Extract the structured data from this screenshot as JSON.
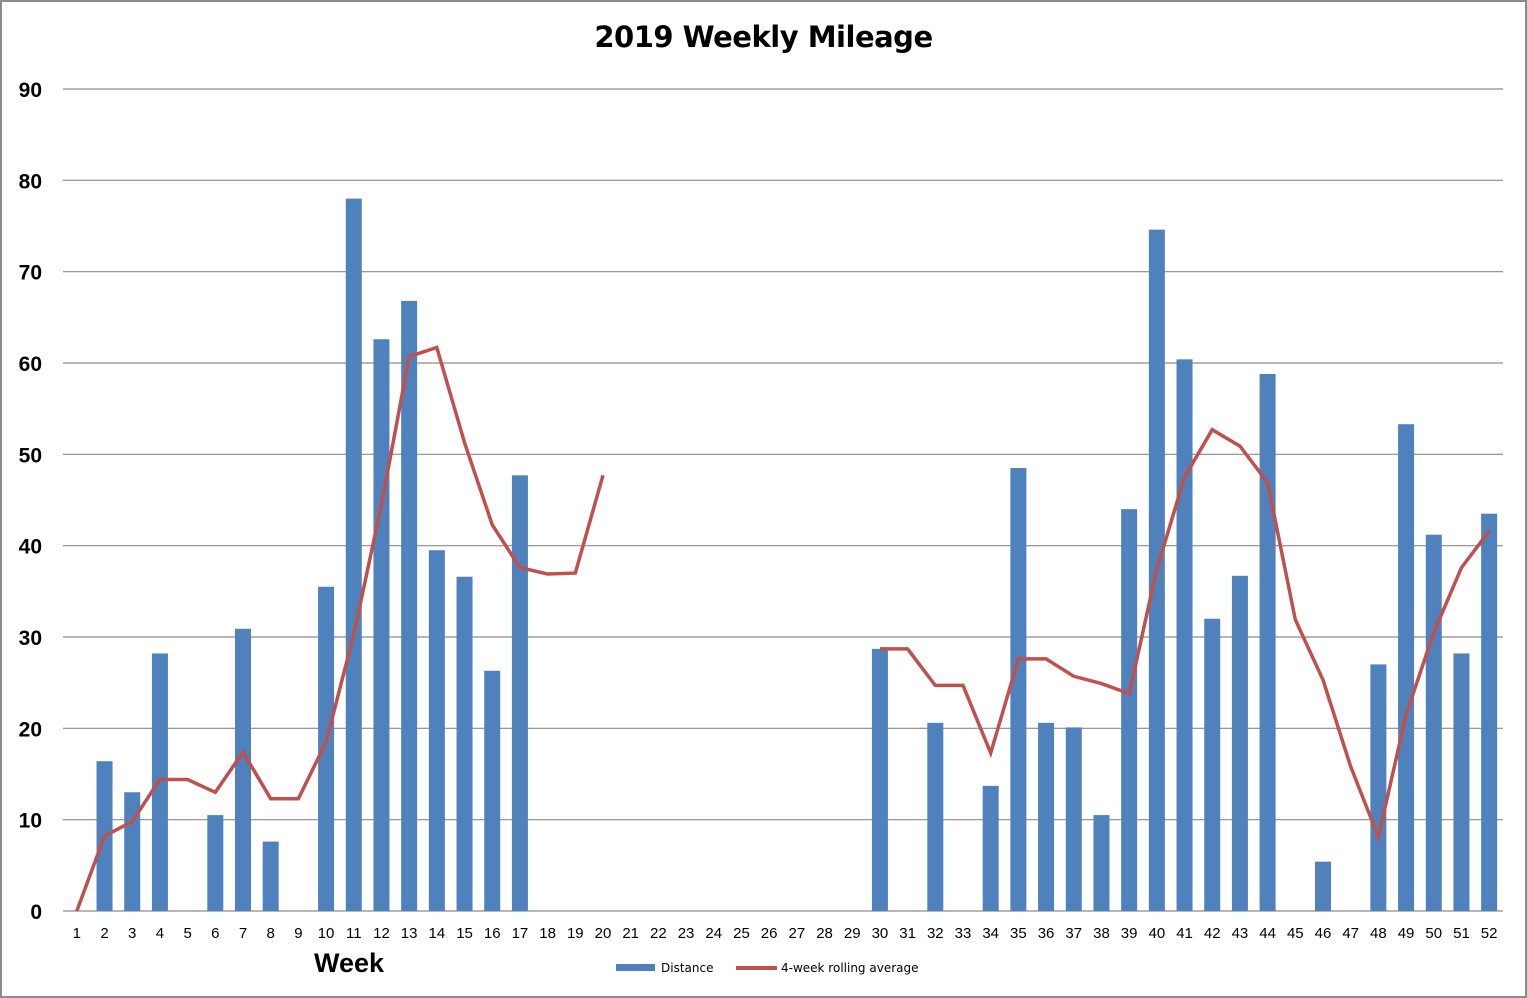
{
  "chart_data": {
    "type": "bar+line",
    "title": "2019 Weekly Mileage",
    "xlabel": "Week",
    "ylabel": "",
    "ylim": [
      0,
      90
    ],
    "yticks": [
      0,
      10,
      20,
      30,
      40,
      50,
      60,
      70,
      80,
      90
    ],
    "grid": true,
    "legend_position": "bottom",
    "categories": [
      1,
      2,
      3,
      4,
      5,
      6,
      7,
      8,
      9,
      10,
      11,
      12,
      13,
      14,
      15,
      16,
      17,
      18,
      19,
      20,
      21,
      22,
      23,
      24,
      25,
      26,
      27,
      28,
      29,
      30,
      31,
      32,
      33,
      34,
      35,
      36,
      37,
      38,
      39,
      40,
      41,
      42,
      43,
      44,
      45,
      46,
      47,
      48,
      49,
      50,
      51,
      52
    ],
    "series": [
      {
        "name": "Distance",
        "type": "bar",
        "color": "#4f81bd",
        "values": [
          0,
          16.4,
          13.0,
          28.2,
          0,
          10.5,
          30.9,
          7.6,
          0,
          35.5,
          78.0,
          62.6,
          66.8,
          39.5,
          36.6,
          26.3,
          47.7,
          0,
          0,
          0,
          0,
          0,
          0,
          0,
          0,
          0,
          0,
          0,
          0,
          28.7,
          0,
          20.6,
          0,
          13.7,
          48.5,
          20.6,
          20.1,
          10.5,
          44.0,
          74.6,
          60.4,
          32.0,
          36.7,
          58.8,
          0,
          5.4,
          0,
          27.0,
          53.3,
          41.2,
          28.2,
          43.5
        ]
      },
      {
        "name": "4-week rolling average",
        "type": "line",
        "color": "#c0504d",
        "values": [
          0,
          8.2,
          9.8,
          14.4,
          14.4,
          13.0,
          17.4,
          12.3,
          12.3,
          18.5,
          30.3,
          44.5,
          60.7,
          61.7,
          51.3,
          42.3,
          37.6,
          36.9,
          37.0,
          47.7,
          null,
          null,
          null,
          null,
          null,
          null,
          null,
          null,
          null,
          28.7,
          28.7,
          24.7,
          24.7,
          17.3,
          27.6,
          27.6,
          25.7,
          24.9,
          23.8,
          37.4,
          47.5,
          52.7,
          50.9,
          46.9,
          31.9,
          25.3,
          15.8,
          8.1,
          21.5,
          30.5,
          37.6,
          41.6
        ]
      }
    ]
  },
  "legend": {
    "items": [
      {
        "label": "Distance",
        "color": "#4f81bd"
      },
      {
        "label": "4-week rolling average",
        "color": "#c0504d"
      }
    ]
  },
  "colors": {
    "bar": "#4f81bd",
    "line": "#c0504d",
    "grid": "#8c8c8c",
    "border": "#8c8c8c"
  }
}
